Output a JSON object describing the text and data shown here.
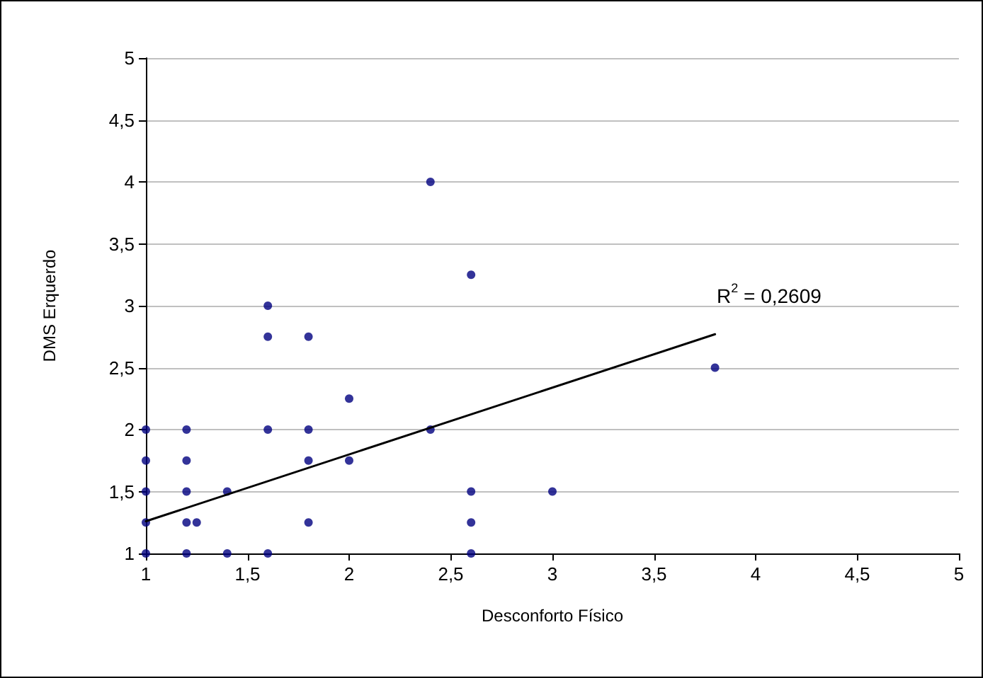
{
  "chart_data": {
    "type": "scatter",
    "xlabel": "Desconforto Físico",
    "ylabel": "DMS Erquerdo",
    "xlim": [
      1,
      5
    ],
    "ylim": [
      1,
      5
    ],
    "xticks": [
      1,
      {
        "value": 1.5,
        "label": "1,5"
      },
      2,
      {
        "value": 2.5,
        "label": "2,5"
      },
      3,
      {
        "value": 3.5,
        "label": "3,5"
      },
      4,
      {
        "value": 4.5,
        "label": "4,5"
      },
      5
    ],
    "yticks": [
      1,
      {
        "value": 1.5,
        "label": "1,5"
      },
      2,
      {
        "value": 2.5,
        "label": "2,5"
      },
      3,
      {
        "value": 3.5,
        "label": "3,5"
      },
      4,
      {
        "value": 4.5,
        "label": "4,5"
      },
      5
    ],
    "grid": "y",
    "series": [
      {
        "color": "#000080",
        "marker": "circle",
        "x": [
          1,
          1,
          1,
          1,
          1,
          1.2,
          1.2,
          1.2,
          1.2,
          1.2,
          1.25,
          1.4,
          1.4,
          1.6,
          1.6,
          1.6,
          1.6,
          1.8,
          1.8,
          1.8,
          1.8,
          2,
          2,
          2.4,
          2.4,
          2.6,
          2.6,
          2.6,
          2.6,
          3,
          3.8
        ],
        "values": [
          1,
          1.25,
          1.5,
          1.75,
          2,
          1,
          1.25,
          1.5,
          1.75,
          2,
          1.25,
          1,
          1.5,
          1,
          2,
          2.75,
          3,
          1.25,
          1.75,
          2,
          2.75,
          1.75,
          2.25,
          2,
          4,
          1,
          1.25,
          1.5,
          3.25,
          1.5,
          2.5
        ]
      },
      {
        "type": "line",
        "color": "#000000",
        "marker": "none",
        "line_style": "solid",
        "x": [
          1,
          3.8
        ],
        "values": [
          1.26,
          2.77
        ]
      }
    ],
    "annotations": [
      "R$^{2}$ = 0,2609"
    ]
  }
}
